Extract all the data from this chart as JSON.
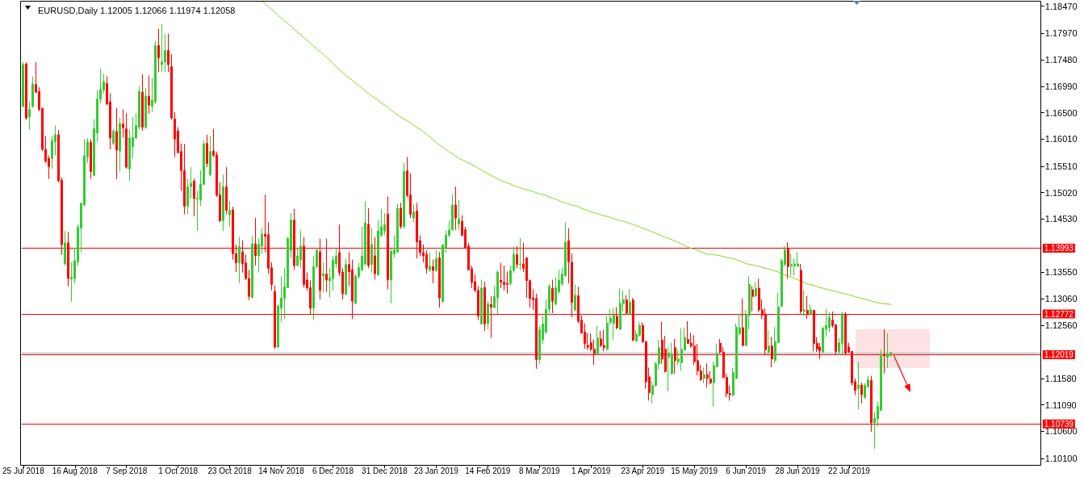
{
  "chart_data": {
    "type": "candlestick",
    "title": "EURUSD,Daily 1.12005 1.12066 1.11974 1.12058",
    "categories": [
      "25 Jul 2018",
      null,
      null,
      null,
      null,
      null,
      null,
      null,
      null,
      null,
      null,
      null,
      null,
      null,
      null,
      null,
      "16 Aug 2018",
      null,
      null,
      null,
      null,
      null,
      null,
      null,
      null,
      null,
      null,
      null,
      null,
      null,
      null,
      null,
      "7 Sep 2018",
      null,
      null,
      null,
      null,
      null,
      null,
      null,
      null,
      null,
      null,
      null,
      null,
      null,
      null,
      null,
      "1 Oct 2018",
      null,
      null,
      null,
      null,
      null,
      null,
      null,
      null,
      null,
      null,
      null,
      null,
      null,
      null,
      null,
      "23 Oct 2018",
      null,
      null,
      null,
      null,
      null,
      null,
      null,
      null,
      null,
      null,
      null,
      null,
      null,
      null,
      null,
      "14 Nov 2018",
      null,
      null,
      null,
      null,
      null,
      null,
      null,
      null,
      null,
      null,
      null,
      null,
      null,
      null,
      null,
      "6 Dec 2018",
      null,
      null,
      null,
      null,
      null,
      null,
      null,
      null,
      null,
      null,
      null,
      null,
      null,
      null,
      null,
      "31 Dec 2018",
      null,
      null,
      null,
      null,
      null,
      null,
      null,
      null,
      null,
      null,
      null,
      null,
      null,
      null,
      null,
      "23 Jan 2019",
      null,
      null,
      null,
      null,
      null,
      null,
      null,
      null,
      null,
      null,
      null,
      null,
      null,
      null,
      null,
      "14 Feb 2019",
      null,
      null,
      null,
      null,
      null,
      null,
      null,
      null,
      null,
      null,
      null,
      null,
      null,
      null,
      null,
      "8 Mar 2019",
      null,
      null,
      null,
      null,
      null,
      null,
      null,
      null,
      null,
      null,
      null,
      null,
      null,
      null,
      null,
      "1 Apr 2019",
      null,
      null,
      null,
      null,
      null,
      null,
      null,
      null,
      null,
      null,
      null,
      null,
      null,
      null,
      null,
      "23 Apr 2019",
      null,
      null,
      null,
      null,
      null,
      null,
      null,
      null,
      null,
      null,
      null,
      null,
      null,
      null,
      null,
      "15 May 2019",
      null,
      null,
      null,
      null,
      null,
      null,
      null,
      null,
      null,
      null,
      null,
      null,
      null,
      null,
      null,
      "6 Jun 2019",
      null,
      null,
      null,
      null,
      null,
      null,
      null,
      null,
      null,
      null,
      null,
      null,
      null,
      null,
      null,
      "28 Jun 2019",
      null,
      null,
      null,
      null,
      null,
      null,
      null,
      null,
      null,
      null,
      null,
      null,
      null,
      null,
      null,
      "22 Jul 2019",
      null,
      null,
      null,
      null,
      null,
      null,
      null,
      null,
      null,
      null,
      null,
      null,
      null,
      null,
      null,
      null,
      null,
      null,
      null,
      null,
      null,
      null,
      null,
      null,
      null,
      null,
      null,
      null,
      null,
      null,
      null,
      null,
      null,
      null,
      null,
      null,
      null,
      null,
      null,
      null,
      null,
      null,
      null,
      null,
      null,
      null,
      null,
      null,
      null,
      null,
      null,
      null,
      null,
      null,
      null,
      null,
      null,
      null,
      null
    ],
    "ohlc": [
      [
        1.1662,
        1.1744,
        1.1659,
        1.1739
      ],
      [
        1.174,
        1.1743,
        1.1637,
        1.164
      ],
      [
        1.1642,
        1.167,
        1.1618,
        1.1656
      ],
      [
        1.1662,
        1.1717,
        1.1659,
        1.1703
      ],
      [
        1.1702,
        1.1744,
        1.1686,
        1.1688
      ],
      [
        1.1689,
        1.1697,
        1.1653,
        1.1656
      ],
      [
        1.1658,
        1.1659,
        1.1579,
        1.1582
      ],
      [
        1.1582,
        1.1607,
        1.1557,
        1.156
      ],
      [
        1.1565,
        1.1571,
        1.1527,
        1.155
      ],
      [
        1.1565,
        1.1607,
        1.1546,
        1.1598
      ],
      [
        1.1596,
        1.1626,
        1.1571,
        1.1609
      ],
      [
        1.1609,
        1.1618,
        1.1521,
        1.1524
      ],
      [
        1.1525,
        1.153,
        1.1387,
        1.1406
      ],
      [
        1.137,
        1.1431,
        1.1367,
        1.1409
      ],
      [
        1.1409,
        1.1429,
        1.1328,
        1.1343
      ],
      [
        1.1342,
        1.1373,
        1.13,
        1.1345
      ],
      [
        1.1343,
        1.14,
        1.1334,
        1.1376
      ],
      [
        1.1374,
        1.1444,
        1.1367,
        1.1438
      ],
      [
        1.1436,
        1.1484,
        1.1392,
        1.1482
      ],
      [
        1.1479,
        1.1601,
        1.1477,
        1.157
      ],
      [
        1.1568,
        1.1603,
        1.1557,
        1.1596
      ],
      [
        1.1595,
        1.1601,
        1.1527,
        1.1541
      ],
      [
        1.1534,
        1.1638,
        1.1532,
        1.162
      ],
      [
        1.1612,
        1.1692,
        1.1596,
        1.1675
      ],
      [
        1.1675,
        1.1732,
        1.1667,
        1.1693
      ],
      [
        1.1692,
        1.1722,
        1.1686,
        1.1707
      ],
      [
        1.1704,
        1.1717,
        1.1664,
        1.1666
      ],
      [
        1.167,
        1.1686,
        1.1582,
        1.1603
      ],
      [
        1.1593,
        1.162,
        1.159,
        1.1616
      ],
      [
        1.1615,
        1.1659,
        1.1527,
        1.1581
      ],
      [
        1.1579,
        1.164,
        1.1541,
        1.163
      ],
      [
        1.1629,
        1.1656,
        1.1604,
        1.1622
      ],
      [
        1.162,
        1.1649,
        1.1546,
        1.1549
      ],
      [
        1.1546,
        1.1618,
        1.1524,
        1.1603
      ],
      [
        1.1587,
        1.1642,
        1.1565,
        1.1604
      ],
      [
        1.1603,
        1.1649,
        1.1601,
        1.1626
      ],
      [
        1.1623,
        1.1699,
        1.1619,
        1.1689
      ],
      [
        1.1688,
        1.1721,
        1.1616,
        1.1623
      ],
      [
        1.1623,
        1.1696,
        1.162,
        1.1681
      ],
      [
        1.168,
        1.1719,
        1.1648,
        1.1664
      ],
      [
        1.1662,
        1.1714,
        1.1651,
        1.1673
      ],
      [
        1.167,
        1.1783,
        1.1666,
        1.1774
      ],
      [
        1.1774,
        1.1805,
        1.1725,
        1.1752
      ],
      [
        1.1739,
        1.1814,
        1.1725,
        1.1744
      ],
      [
        1.1744,
        1.1796,
        1.1725,
        1.1765
      ],
      [
        1.1765,
        1.1796,
        1.1725,
        1.1739
      ],
      [
        1.1735,
        1.1758,
        1.1637,
        1.164
      ],
      [
        1.1638,
        1.1651,
        1.1568,
        1.1601
      ],
      [
        1.1616,
        1.1623,
        1.1575,
        1.1576
      ],
      [
        1.1578,
        1.1593,
        1.1505,
        1.1543
      ],
      [
        1.1543,
        1.1592,
        1.1462,
        1.1477
      ],
      [
        1.1477,
        1.1527,
        1.1462,
        1.1513
      ],
      [
        1.1513,
        1.1549,
        1.1491,
        1.1519
      ],
      [
        1.1523,
        1.1528,
        1.1458,
        1.1491
      ],
      [
        1.149,
        1.1505,
        1.1431,
        1.1492
      ],
      [
        1.1488,
        1.1543,
        1.1477,
        1.1517
      ],
      [
        1.1517,
        1.1598,
        1.1516,
        1.1592
      ],
      [
        1.1593,
        1.1609,
        1.1549,
        1.1556
      ],
      [
        1.1535,
        1.1607,
        1.1532,
        1.1578
      ],
      [
        1.1579,
        1.162,
        1.1568,
        1.1571
      ],
      [
        1.1572,
        1.1578,
        1.1494,
        1.1497
      ],
      [
        1.1498,
        1.1521,
        1.1447,
        1.145
      ],
      [
        1.145,
        1.1535,
        1.1431,
        1.1513
      ],
      [
        1.1513,
        1.1549,
        1.1461,
        1.1469
      ],
      [
        1.1461,
        1.1486,
        1.1439,
        1.1469
      ],
      [
        1.147,
        1.1476,
        1.1378,
        1.1389
      ],
      [
        1.1389,
        1.1406,
        1.1355,
        1.1372
      ],
      [
        1.1372,
        1.142,
        1.1334,
        1.1402
      ],
      [
        1.1392,
        1.1414,
        1.1354,
        1.137
      ],
      [
        1.1372,
        1.1387,
        1.134,
        1.1343
      ],
      [
        1.1343,
        1.1359,
        1.1303,
        1.131
      ],
      [
        1.1308,
        1.1422,
        1.1306,
        1.1407
      ],
      [
        1.1407,
        1.1455,
        1.1367,
        1.1385
      ],
      [
        1.1385,
        1.1417,
        1.1354,
        1.1406
      ],
      [
        1.1403,
        1.1436,
        1.1389,
        1.1425
      ],
      [
        1.1425,
        1.1498,
        1.1392,
        1.1421
      ],
      [
        1.1424,
        1.1447,
        1.1352,
        1.1362
      ],
      [
        1.1363,
        1.1373,
        1.1321,
        1.1332
      ],
      [
        1.1319,
        1.133,
        1.1213,
        1.1216
      ],
      [
        1.1216,
        1.1295,
        1.1215,
        1.1292
      ],
      [
        1.1288,
        1.1347,
        1.1263,
        1.1307
      ],
      [
        1.1306,
        1.1362,
        1.1268,
        1.1328
      ],
      [
        1.1326,
        1.142,
        1.1325,
        1.1417
      ],
      [
        1.1395,
        1.1464,
        1.1381,
        1.1451
      ],
      [
        1.1451,
        1.1472,
        1.1359,
        1.1367
      ],
      [
        1.1367,
        1.14,
        1.1365,
        1.1385
      ],
      [
        1.1378,
        1.1433,
        1.1362,
        1.1403
      ],
      [
        1.1403,
        1.142,
        1.1326,
        1.1332
      ],
      [
        1.134,
        1.1354,
        1.1321,
        1.1326
      ],
      [
        1.1326,
        1.134,
        1.1277,
        1.1288
      ],
      [
        1.1288,
        1.1384,
        1.1266,
        1.1365
      ],
      [
        1.1365,
        1.14,
        1.1362,
        1.1395
      ],
      [
        1.1392,
        1.1417,
        1.1304,
        1.1321
      ],
      [
        1.1348,
        1.1373,
        1.1318,
        1.1352
      ],
      [
        1.1351,
        1.1417,
        1.1318,
        1.134
      ],
      [
        1.1339,
        1.1362,
        1.1308,
        1.1344
      ],
      [
        1.1343,
        1.1385,
        1.1321,
        1.1377
      ],
      [
        1.137,
        1.14,
        1.1362,
        1.1385
      ],
      [
        1.1391,
        1.1443,
        1.1348,
        1.1354
      ],
      [
        1.1355,
        1.1362,
        1.1304,
        1.1315
      ],
      [
        1.1314,
        1.138,
        1.1312,
        1.1369
      ],
      [
        1.1369,
        1.1392,
        1.1329,
        1.1355
      ],
      [
        1.1359,
        1.1378,
        1.1268,
        1.1301
      ],
      [
        1.1297,
        1.1351,
        1.1295,
        1.1347
      ],
      [
        1.1347,
        1.1372,
        1.1343,
        1.1363
      ],
      [
        1.1359,
        1.1439,
        1.1356,
        1.1384
      ],
      [
        1.137,
        1.1486,
        1.1367,
        1.1446
      ],
      [
        1.1443,
        1.1473,
        1.1362,
        1.1367
      ],
      [
        1.1369,
        1.1436,
        1.1354,
        1.1406
      ],
      [
        1.1385,
        1.142,
        1.1341,
        1.1352
      ],
      [
        1.135,
        1.1451,
        1.1348,
        1.1431
      ],
      [
        1.1423,
        1.1472,
        1.142,
        1.1439
      ],
      [
        1.1431,
        1.1464,
        1.1423,
        1.1443
      ],
      [
        1.1462,
        1.1495,
        1.1323,
        1.1341
      ],
      [
        1.134,
        1.1398,
        1.1297,
        1.1393
      ],
      [
        1.1389,
        1.1423,
        1.1381,
        1.1396
      ],
      [
        1.1392,
        1.1482,
        1.1391,
        1.1473
      ],
      [
        1.1473,
        1.1483,
        1.1435,
        1.1439
      ],
      [
        1.1439,
        1.1557,
        1.1435,
        1.1541
      ],
      [
        1.1542,
        1.1568,
        1.1493,
        1.1497
      ],
      [
        1.1498,
        1.1538,
        1.1455,
        1.1462
      ],
      [
        1.1455,
        1.148,
        1.1447,
        1.1466
      ],
      [
        1.1468,
        1.1483,
        1.138,
        1.1411
      ],
      [
        1.1413,
        1.1423,
        1.1384,
        1.1391
      ],
      [
        1.1391,
        1.1406,
        1.1373,
        1.1385
      ],
      [
        1.1387,
        1.1395,
        1.1352,
        1.1362
      ],
      [
        1.1359,
        1.1391,
        1.1355,
        1.1366
      ],
      [
        1.1365,
        1.1378,
        1.1334,
        1.1358
      ],
      [
        1.1358,
        1.1395,
        1.1355,
        1.138
      ],
      [
        1.1381,
        1.1392,
        1.1289,
        1.1307
      ],
      [
        1.13,
        1.1406,
        1.1299,
        1.1405
      ],
      [
        1.14,
        1.1432,
        1.1391,
        1.1423
      ],
      [
        1.1423,
        1.145,
        1.142,
        1.1433
      ],
      [
        1.1433,
        1.1499,
        1.1432,
        1.1479
      ],
      [
        1.1479,
        1.1513,
        1.1433,
        1.1455
      ],
      [
        1.1444,
        1.1488,
        1.1433,
        1.1453
      ],
      [
        1.1449,
        1.146,
        1.1421,
        1.1423
      ],
      [
        1.1433,
        1.1439,
        1.1398,
        1.14
      ],
      [
        1.1403,
        1.1409,
        1.1358,
        1.1359
      ],
      [
        1.1361,
        1.1367,
        1.1325,
        1.1336
      ],
      [
        1.1337,
        1.1351,
        1.1318,
        1.1321
      ],
      [
        1.1321,
        1.1329,
        1.1266,
        1.1274
      ],
      [
        1.1259,
        1.134,
        1.1257,
        1.1325
      ],
      [
        1.1326,
        1.1337,
        1.1246,
        1.1259
      ],
      [
        1.126,
        1.1301,
        1.1249,
        1.1296
      ],
      [
        1.1295,
        1.131,
        1.1233,
        1.129
      ],
      [
        1.1289,
        1.1329,
        1.1288,
        1.131
      ],
      [
        1.1307,
        1.1358,
        1.1277,
        1.1355
      ],
      [
        1.134,
        1.1372,
        1.1325,
        1.1336
      ],
      [
        1.1336,
        1.1367,
        1.1321,
        1.1332
      ],
      [
        1.1334,
        1.1356,
        1.1315,
        1.1332
      ],
      [
        1.1334,
        1.1367,
        1.133,
        1.1358
      ],
      [
        1.1358,
        1.1402,
        1.1354,
        1.1388
      ],
      [
        1.1387,
        1.1403,
        1.1362,
        1.1369
      ],
      [
        1.1369,
        1.1418,
        1.1358,
        1.137
      ],
      [
        1.137,
        1.1409,
        1.1355,
        1.1362
      ],
      [
        1.1381,
        1.1383,
        1.1307,
        1.1339
      ],
      [
        1.1339,
        1.1341,
        1.1289,
        1.1306
      ],
      [
        1.1307,
        1.1323,
        1.1285,
        1.1304
      ],
      [
        1.1306,
        1.1315,
        1.1176,
        1.1193
      ],
      [
        1.1193,
        1.1255,
        1.1185,
        1.1248
      ],
      [
        1.123,
        1.1274,
        1.1222,
        1.1259
      ],
      [
        1.1244,
        1.1304,
        1.1241,
        1.1286
      ],
      [
        1.1286,
        1.1333,
        1.1279,
        1.1328
      ],
      [
        1.1325,
        1.1341,
        1.1279,
        1.1301
      ],
      [
        1.1296,
        1.1345,
        1.1293,
        1.1326
      ],
      [
        1.1319,
        1.1359,
        1.1315,
        1.134
      ],
      [
        1.1333,
        1.1363,
        1.1329,
        1.1351
      ],
      [
        1.1348,
        1.1447,
        1.1347,
        1.141
      ],
      [
        1.1413,
        1.1436,
        1.1334,
        1.1374
      ],
      [
        1.1373,
        1.1389,
        1.1271,
        1.1299
      ],
      [
        1.1285,
        1.1332,
        1.1282,
        1.1312
      ],
      [
        1.1311,
        1.1328,
        1.126,
        1.1264
      ],
      [
        1.1266,
        1.1274,
        1.1241,
        1.1242
      ],
      [
        1.1244,
        1.126,
        1.1213,
        1.1223
      ],
      [
        1.1219,
        1.1242,
        1.1211,
        1.1216
      ],
      [
        1.1224,
        1.1241,
        1.1208,
        1.1212
      ],
      [
        1.1212,
        1.123,
        1.1183,
        1.1204
      ],
      [
        1.1204,
        1.1255,
        1.1202,
        1.1233
      ],
      [
        1.1231,
        1.1246,
        1.1216,
        1.1219
      ],
      [
        1.1219,
        1.1248,
        1.1208,
        1.1215
      ],
      [
        1.1212,
        1.1274,
        1.1209,
        1.126
      ],
      [
        1.1262,
        1.1286,
        1.1257,
        1.127
      ],
      [
        1.126,
        1.1288,
        1.123,
        1.1275
      ],
      [
        1.1273,
        1.129,
        1.1249,
        1.1252
      ],
      [
        1.1249,
        1.1325,
        1.1248,
        1.1297
      ],
      [
        1.1296,
        1.1321,
        1.1282,
        1.1304
      ],
      [
        1.1303,
        1.1312,
        1.1277,
        1.1279
      ],
      [
        1.1278,
        1.1323,
        1.1277,
        1.1299
      ],
      [
        1.1303,
        1.1307,
        1.1227,
        1.1229
      ],
      [
        1.1227,
        1.1248,
        1.1226,
        1.124
      ],
      [
        1.1238,
        1.1263,
        1.1235,
        1.1256
      ],
      [
        1.1256,
        1.1262,
        1.1224,
        1.1226
      ],
      [
        1.1226,
        1.1227,
        1.1139,
        1.1152
      ],
      [
        1.1161,
        1.1178,
        1.1117,
        1.1132
      ],
      [
        1.1128,
        1.1153,
        1.1112,
        1.1145
      ],
      [
        1.1145,
        1.1189,
        1.1143,
        1.1185
      ],
      [
        1.1185,
        1.123,
        1.1175,
        1.1215
      ],
      [
        1.1229,
        1.1263,
        1.1185,
        1.1194
      ],
      [
        1.1212,
        1.1237,
        1.1169,
        1.1171
      ],
      [
        1.1197,
        1.1216,
        1.1134,
        1.1205
      ],
      [
        1.1167,
        1.1224,
        1.1165,
        1.12
      ],
      [
        1.1215,
        1.1231,
        1.1167,
        1.1191
      ],
      [
        1.1189,
        1.1211,
        1.1183,
        1.1194
      ],
      [
        1.1187,
        1.1251,
        1.1172,
        1.1212
      ],
      [
        1.1211,
        1.1252,
        1.1209,
        1.1234
      ],
      [
        1.123,
        1.1264,
        1.1222,
        1.1223
      ],
      [
        1.1223,
        1.1242,
        1.1215,
        1.1218
      ],
      [
        1.1218,
        1.1238,
        1.1183,
        1.1189
      ],
      [
        1.1191,
        1.1222,
        1.1164,
        1.1172
      ],
      [
        1.1172,
        1.1183,
        1.1153,
        1.1156
      ],
      [
        1.1158,
        1.1178,
        1.1149,
        1.1165
      ],
      [
        1.1165,
        1.1186,
        1.1141,
        1.1158
      ],
      [
        1.1157,
        1.1172,
        1.1147,
        1.115
      ],
      [
        1.115,
        1.1189,
        1.1106,
        1.1182
      ],
      [
        1.118,
        1.1222,
        1.1178,
        1.1204
      ],
      [
        1.1223,
        1.1231,
        1.1204,
        1.1207
      ],
      [
        1.1207,
        1.1216,
        1.1158,
        1.116
      ],
      [
        1.116,
        1.1167,
        1.1123,
        1.113
      ],
      [
        1.113,
        1.1145,
        1.1117,
        1.1128
      ],
      [
        1.1127,
        1.1178,
        1.1125,
        1.1169
      ],
      [
        1.1158,
        1.126,
        1.1157,
        1.1253
      ],
      [
        1.1241,
        1.1277,
        1.1238,
        1.1252
      ],
      [
        1.1252,
        1.1306,
        1.1218,
        1.1219
      ],
      [
        1.1219,
        1.1285,
        1.1218,
        1.1275
      ],
      [
        1.1274,
        1.1347,
        1.1249,
        1.1332
      ],
      [
        1.1322,
        1.1329,
        1.1282,
        1.131
      ],
      [
        1.1311,
        1.1337,
        1.1307,
        1.1325
      ],
      [
        1.1325,
        1.1343,
        1.1281,
        1.1285
      ],
      [
        1.1285,
        1.1304,
        1.1268,
        1.1275
      ],
      [
        1.1277,
        1.1288,
        1.1202,
        1.1211
      ],
      [
        1.1207,
        1.1248,
        1.12,
        1.1218
      ],
      [
        1.1218,
        1.1235,
        1.1179,
        1.1194
      ],
      [
        1.1191,
        1.1253,
        1.1186,
        1.1226
      ],
      [
        1.1224,
        1.1317,
        1.1223,
        1.129
      ],
      [
        1.1292,
        1.138,
        1.1289,
        1.1376
      ],
      [
        1.1369,
        1.1403,
        1.1365,
        1.1396
      ],
      [
        1.1399,
        1.141,
        1.1343,
        1.1365
      ],
      [
        1.1366,
        1.1389,
        1.1348,
        1.1369
      ],
      [
        1.1366,
        1.138,
        1.1348,
        1.137
      ],
      [
        1.1366,
        1.1392,
        1.1365,
        1.137
      ],
      [
        1.1358,
        1.137,
        1.1278,
        1.1282
      ],
      [
        1.1282,
        1.1321,
        1.1274,
        1.1285
      ],
      [
        1.1284,
        1.1311,
        1.1268,
        1.1278
      ],
      [
        1.1277,
        1.1295,
        1.1274,
        1.1285
      ],
      [
        1.1284,
        1.1285,
        1.1208,
        1.1223
      ],
      [
        1.1223,
        1.1234,
        1.1207,
        1.1213
      ],
      [
        1.1216,
        1.1224,
        1.1194,
        1.1209
      ],
      [
        1.1207,
        1.1253,
        1.1205,
        1.1251
      ],
      [
        1.1249,
        1.1286,
        1.1235,
        1.1256
      ],
      [
        1.1252,
        1.1281,
        1.1244,
        1.1271
      ],
      [
        1.1266,
        1.1282,
        1.1252,
        1.1256
      ],
      [
        1.1257,
        1.1259,
        1.1202,
        1.1208
      ],
      [
        1.1208,
        1.1233,
        1.1202,
        1.1224
      ],
      [
        1.1223,
        1.1281,
        1.1202,
        1.1278
      ],
      [
        1.1277,
        1.1281,
        1.1201,
        1.1205
      ],
      [
        1.1216,
        1.1224,
        1.1205,
        1.1207
      ],
      [
        1.1208,
        1.1209,
        1.1145,
        1.115
      ],
      [
        1.1152,
        1.1158,
        1.1127,
        1.1136
      ],
      [
        1.1139,
        1.1189,
        1.1101,
        1.1146
      ],
      [
        1.1146,
        1.115,
        1.1112,
        1.1128
      ],
      [
        1.1123,
        1.1149,
        1.112,
        1.1145
      ],
      [
        1.1143,
        1.1163,
        1.1139,
        1.1156
      ],
      [
        1.1154,
        1.1163,
        1.1059,
        1.1076
      ],
      [
        1.1076,
        1.1095,
        1.1028,
        1.1084
      ],
      [
        1.1084,
        1.1116,
        1.1069,
        1.1106
      ],
      [
        1.1099,
        1.1212,
        1.1098,
        1.12
      ],
      [
        1.1202,
        1.1249,
        1.1167,
        1.12
      ],
      [
        1.1197,
        1.1241,
        1.1178,
        1.1201
      ],
      [
        1.12005,
        1.12066,
        1.11974,
        1.12058
      ],
      null,
      null,
      null,
      null,
      null,
      null,
      null,
      null,
      null,
      null,
      null,
      null,
      null,
      null,
      null,
      null,
      null,
      null,
      null,
      null,
      null,
      null,
      null,
      null,
      null,
      null,
      null,
      null,
      null,
      null,
      null,
      null,
      null,
      null,
      null,
      null,
      null,
      null,
      null,
      null,
      null,
      null,
      null,
      null,
      null,
      null
    ],
    "colors": [
      "#32cd32",
      "#ff0000",
      "#32cd32",
      "#32cd32",
      "#ff0000",
      "#ff0000",
      "#ff0000",
      "#ff0000",
      "#ff0000",
      "#32cd32",
      "#32cd32",
      "#ff0000",
      "#ff0000",
      "#32cd32",
      "#ff0000",
      "#32cd32",
      "#32cd32",
      "#32cd32",
      "#32cd32",
      "#32cd32",
      "#32cd32",
      "#ff0000",
      "#32cd32",
      "#32cd32",
      "#32cd32",
      "#32cd32",
      "#ff0000",
      "#ff0000",
      "#32cd32",
      "#ff0000",
      "#32cd32",
      "#ff0000",
      "#ff0000",
      "#32cd32",
      "#32cd32",
      "#32cd32",
      "#32cd32",
      "#ff0000",
      "#32cd32",
      "#ff0000",
      "#32cd32",
      "#32cd32",
      "#ff0000",
      "#32cd32",
      "#32cd32",
      "#ff0000",
      "#ff0000",
      "#ff0000",
      "#ff0000",
      "#ff0000",
      "#ff0000",
      "#32cd32",
      "#32cd32",
      "#ff0000",
      "#32cd32",
      "#32cd32",
      "#32cd32",
      "#ff0000",
      "#32cd32",
      "#ff0000",
      "#ff0000",
      "#ff0000",
      "#32cd32",
      "#ff0000",
      "#32cd32",
      "#ff0000",
      "#ff0000",
      "#32cd32",
      "#ff0000",
      "#ff0000",
      "#ff0000",
      "#32cd32",
      "#ff0000",
      "#32cd32",
      "#32cd32",
      "#ff0000",
      "#ff0000",
      "#ff0000",
      "#ff0000",
      "#32cd32",
      "#32cd32",
      "#32cd32",
      "#32cd32",
      "#32cd32",
      "#ff0000",
      "#32cd32",
      "#32cd32",
      "#ff0000",
      "#ff0000",
      "#ff0000",
      "#32cd32",
      "#32cd32",
      "#ff0000",
      "#32cd32",
      "#ff0000",
      "#32cd32",
      "#32cd32",
      "#32cd32",
      "#ff0000",
      "#ff0000",
      "#32cd32",
      "#ff0000",
      "#ff0000",
      "#32cd32",
      "#32cd32",
      "#32cd32",
      "#32cd32",
      "#ff0000",
      "#32cd32",
      "#ff0000",
      "#32cd32",
      "#32cd32",
      "#32cd32",
      "#ff0000",
      "#32cd32",
      "#32cd32",
      "#32cd32",
      "#ff0000",
      "#32cd32",
      "#ff0000",
      "#ff0000",
      "#32cd32",
      "#ff0000",
      "#ff0000",
      "#ff0000",
      "#ff0000",
      "#32cd32",
      "#ff0000",
      "#32cd32",
      "#ff0000",
      "#32cd32",
      "#32cd32",
      "#32cd32",
      "#32cd32",
      "#ff0000",
      "#32cd32",
      "#ff0000",
      "#ff0000",
      "#ff0000",
      "#ff0000",
      "#ff0000",
      "#ff0000",
      "#32cd32",
      "#ff0000",
      "#32cd32",
      "#ff0000",
      "#32cd32",
      "#32cd32",
      "#ff0000",
      "#ff0000",
      "#ff0000",
      "#32cd32",
      "#32cd32",
      "#ff0000",
      "#32cd32",
      "#ff0000",
      "#ff0000",
      "#ff0000",
      "#ff0000",
      "#ff0000",
      "#32cd32",
      "#32cd32",
      "#32cd32",
      "#32cd32",
      "#ff0000",
      "#32cd32",
      "#32cd32",
      "#32cd32",
      "#32cd32",
      "#ff0000",
      "#ff0000",
      "#32cd32",
      "#ff0000",
      "#ff0000",
      "#ff0000",
      "#ff0000",
      "#ff0000",
      "#ff0000",
      "#32cd32",
      "#ff0000",
      "#ff0000",
      "#32cd32",
      "#32cd32",
      "#32cd32",
      "#ff0000",
      "#32cd32",
      "#32cd32",
      "#ff0000",
      "#32cd32",
      "#ff0000",
      "#32cd32",
      "#32cd32",
      "#ff0000",
      "#ff0000",
      "#ff0000",
      "#32cd32",
      "#32cd32",
      "#32cd32",
      "#ff0000",
      "#ff0000",
      "#32cd32",
      "#32cd32",
      "#ff0000",
      "#32cd32",
      "#32cd32",
      "#32cd32",
      "#ff0000",
      "#ff0000",
      "#ff0000",
      "#ff0000",
      "#ff0000",
      "#32cd32",
      "#ff0000",
      "#ff0000",
      "#32cd32",
      "#32cd32",
      "#ff0000",
      "#ff0000",
      "#ff0000",
      "#ff0000",
      "#32cd32",
      "#32cd32",
      "#32cd32",
      "#ff0000",
      "#32cd32",
      "#32cd32",
      "#ff0000",
      "#32cd32",
      "#ff0000",
      "#ff0000",
      "#ff0000",
      "#32cd32",
      "#ff0000",
      "#32cd32",
      "#32cd32",
      "#32cd32",
      "#32cd32",
      "#ff0000",
      "#32cd32",
      "#32cd32",
      "#32cd32",
      "#ff0000",
      "#32cd32",
      "#ff0000",
      "#32cd32",
      "#ff0000",
      "#ff0000",
      "#ff0000",
      "#32cd32",
      "#32cd32",
      "#32cd32",
      "#ff0000",
      "#ff0000",
      "#32cd32",
      "#32cd32",
      "#ff0000",
      "#ff0000",
      "#ff0000",
      "#ff0000",
      "#32cd32",
      "#ff0000",
      "#32cd32",
      "#32cd32",
      "#ff0000",
      "#32cd32",
      "#32cd32",
      "#32cd32",
      "#ff0000",
      "#32cd32",
      "#32cd32",
      null,
      null,
      null,
      null,
      null,
      null,
      null,
      null,
      null,
      null,
      null,
      null,
      null,
      null,
      null,
      null,
      null,
      null,
      null,
      null,
      null,
      null,
      null,
      null,
      null,
      null,
      null,
      null,
      null,
      null,
      null,
      null,
      null,
      null,
      null,
      null,
      null,
      null,
      null,
      null,
      null,
      null,
      null,
      null,
      null,
      null
    ],
    "series": [
      {
        "type": "line",
        "color": "#7fdc1f",
        "marker": "none",
        "values": [
          null,
          null,
          null,
          null,
          null,
          null,
          null,
          null,
          null,
          null,
          null,
          null,
          null,
          null,
          null,
          null,
          null,
          null,
          null,
          null,
          null,
          null,
          null,
          null,
          null,
          null,
          null,
          null,
          null,
          null,
          null,
          null,
          null,
          null,
          null,
          null,
          null,
          null,
          null,
          null,
          null,
          null,
          null,
          null,
          null,
          null,
          null,
          null,
          null,
          null,
          null,
          null,
          null,
          null,
          null,
          null,
          null,
          null,
          null,
          null,
          null,
          null,
          null,
          null,
          null,
          null,
          null,
          null,
          null,
          null,
          null,
          null,
          null,
          null,
          1.1856,
          1.1851,
          1.1846,
          1.1841,
          1.1836,
          1.183,
          1.1825,
          1.182,
          1.1815,
          1.181,
          1.1804,
          1.1799,
          1.1794,
          1.1789,
          1.1784,
          1.1779,
          1.1773,
          1.1768,
          1.1763,
          1.1758,
          1.1752,
          1.1747,
          1.1741,
          1.1735,
          1.1729,
          1.1724,
          1.1719,
          1.1714,
          1.171,
          1.1705,
          1.17,
          1.1695,
          1.169,
          1.1686,
          1.1681,
          1.1677,
          1.1673,
          1.1668,
          1.1664,
          1.166,
          1.1655,
          1.165,
          1.1646,
          1.1642,
          1.1638,
          1.1635,
          1.1631,
          1.1627,
          1.1623,
          1.1619,
          1.1615,
          1.161,
          1.1605,
          1.16,
          1.1595,
          1.159,
          1.1586,
          1.1582,
          1.1577,
          1.1574,
          1.157,
          1.1566,
          1.1563,
          1.156,
          1.1557,
          1.1554,
          1.1551,
          1.1547,
          1.1544,
          1.154,
          1.1537,
          1.1534,
          1.1531,
          1.1528,
          1.1525,
          1.1522,
          1.152,
          1.1518,
          1.1515,
          1.1513,
          1.1511,
          1.1509,
          1.1507,
          1.1506,
          1.1504,
          1.1502,
          1.15,
          1.1498,
          1.1497,
          1.1494,
          1.1492,
          1.149,
          1.1487,
          1.1485,
          1.1483,
          1.1481,
          1.1479,
          1.1478,
          1.1476,
          1.1473,
          1.1471,
          1.1469,
          1.1466,
          1.1465,
          1.1463,
          1.1461,
          1.1459,
          1.1458,
          1.1456,
          1.1454,
          1.1452,
          1.145,
          1.1449,
          1.1447,
          1.1445,
          1.1443,
          1.1441,
          1.1439,
          1.1436,
          1.1434,
          1.1432,
          1.1429,
          1.1427,
          1.1424,
          1.1422,
          1.1419,
          1.1417,
          1.1415,
          1.1412,
          1.141,
          1.1407,
          1.1404,
          1.1401,
          1.1399,
          1.1397,
          1.1395,
          1.1393,
          1.139,
          1.1388,
          1.1388,
          1.1387,
          1.1386,
          1.1385,
          1.1384,
          1.1382,
          1.1381,
          1.138,
          1.1378,
          1.1376,
          1.1373,
          1.1371,
          1.1369,
          1.1368,
          1.1367,
          1.1365,
          1.1364,
          1.1362,
          1.1361,
          1.1359,
          1.1357,
          1.1355,
          1.1353,
          1.135,
          1.1348,
          1.1346,
          1.1343,
          1.1341,
          1.1338,
          1.1336,
          1.1333,
          1.1332,
          1.133,
          1.1328,
          1.1326,
          1.1325,
          1.1323,
          1.1322,
          1.132,
          1.1319,
          1.1317,
          1.1316,
          1.1314,
          1.1313,
          1.1311,
          1.1309,
          1.1308,
          1.1306,
          1.1304,
          1.1303,
          1.1301,
          1.13,
          1.1298,
          1.1297,
          1.1296,
          1.1296,
          1.1295,
          null,
          null,
          null,
          null,
          null,
          null,
          null,
          null,
          null,
          null,
          null,
          null,
          null,
          null,
          null,
          null,
          null,
          null,
          null,
          null,
          null,
          null,
          null,
          null,
          null,
          null,
          null,
          null,
          null,
          null,
          null,
          null,
          null,
          null,
          null,
          null,
          null,
          null,
          null,
          null,
          null,
          null,
          null,
          null,
          null,
          null
        ]
      }
    ],
    "ylim": [
      1.0998,
      1.1857
    ],
    "yticks": [
      {
        "value": 1.1847,
        "label": "1.18470"
      },
      {
        "value": 1.1797,
        "label": "1.17970"
      },
      {
        "value": 1.1748,
        "label": "1.17480"
      },
      {
        "value": 1.1699,
        "label": "1.16990"
      },
      {
        "value": 1.165,
        "label": "1.16500"
      },
      {
        "value": 1.1601,
        "label": "1.16010"
      },
      {
        "value": 1.1551,
        "label": "1.15510"
      },
      {
        "value": 1.1502,
        "label": "1.15020"
      },
      {
        "value": 1.1453,
        "label": "1.14530"
      },
      {
        "value": 1.1355,
        "label": "1.13550"
      },
      {
        "value": 1.1306,
        "label": "1.13060"
      },
      {
        "value": 1.1256,
        "label": "1.12560"
      },
      {
        "value": 1.1158,
        "label": "1.11580"
      },
      {
        "value": 1.1109,
        "label": "1.11090"
      },
      {
        "value": 1.106,
        "label": "1.10600"
      },
      {
        "value": 1.101,
        "label": "1.10100"
      }
    ],
    "ref_lines": [
      {
        "axis": "y",
        "value": 1.13993,
        "label": "1.13993",
        "color": "#ff0000"
      },
      {
        "axis": "y",
        "value": 1.12772,
        "label": "1.12772",
        "color": "#ff0000"
      },
      {
        "axis": "y",
        "value": 1.12058,
        "color": "#a3acb5"
      },
      {
        "axis": "y",
        "value": 1.12019,
        "label": "1.12019",
        "color": "#ff0000"
      },
      {
        "axis": "y",
        "value": 1.10739,
        "label": "1.10739",
        "color": "#ff0000"
      }
    ]
  }
}
